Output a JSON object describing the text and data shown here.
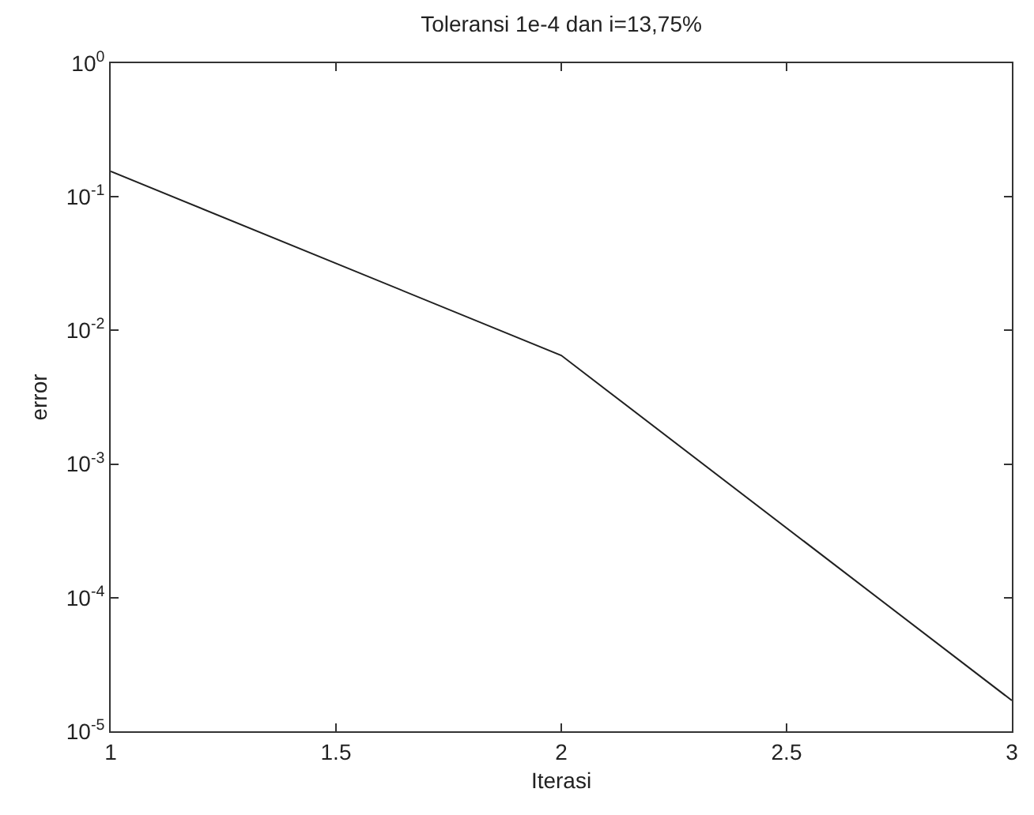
{
  "chart_data": {
    "type": "line",
    "title": "Toleransi 1e-4 dan i=13,75%",
    "xlabel": "Iterasi",
    "ylabel": "error",
    "x": [
      1,
      2,
      3
    ],
    "values": [
      0.155,
      0.0065,
      1.7e-05
    ],
    "color": "#202020",
    "marker": "none",
    "line_style": "solid",
    "log": true,
    "xlim": [
      1,
      3
    ],
    "xticks": [
      1,
      1.5,
      2,
      2.5,
      3
    ],
    "ylim": [
      1e-05,
      1
    ],
    "yticks": [
      {
        "value": 1e-05,
        "label": "10$^{-5}$"
      },
      {
        "value": 0.0001,
        "label": "10$^{-4}$"
      },
      {
        "value": 0.001,
        "label": "10$^{-3}$"
      },
      {
        "value": 0.01,
        "label": "10$^{-2}$"
      },
      {
        "value": 0.1,
        "label": "10$^{-1}$"
      },
      {
        "value": 1,
        "label": "10$^{0}$"
      }
    ]
  }
}
